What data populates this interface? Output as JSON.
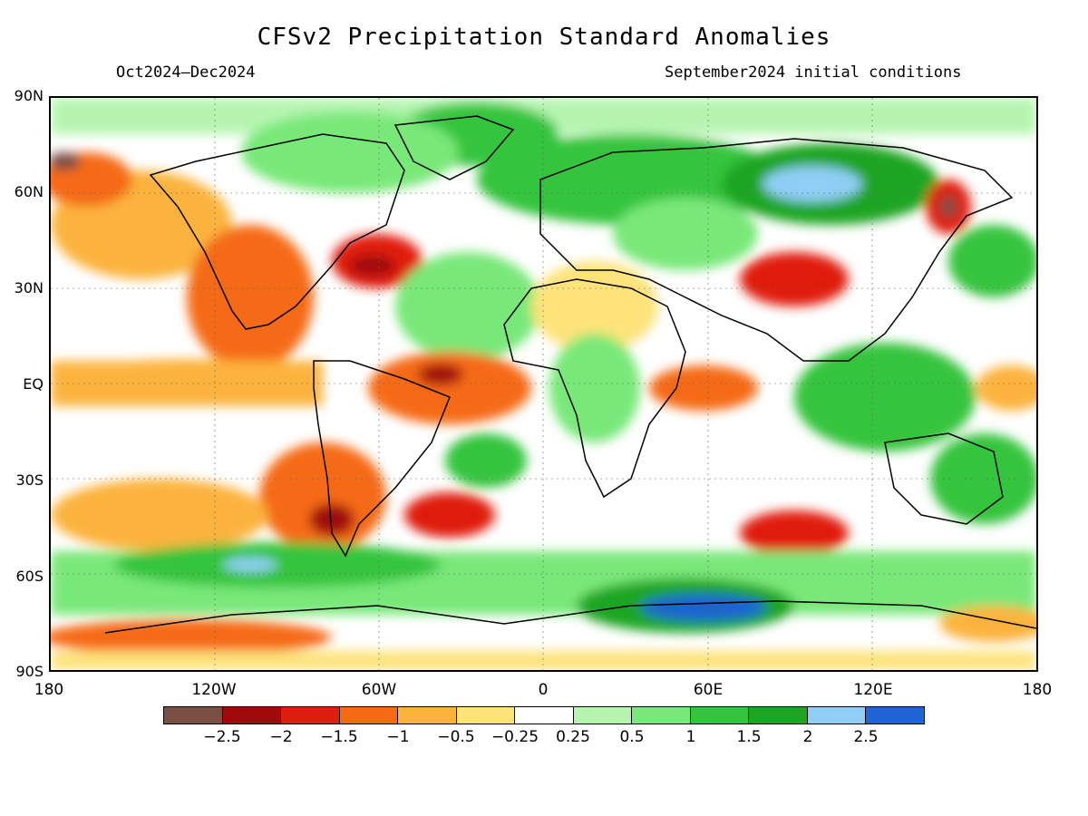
{
  "header": {
    "title": "CFSv2 Precipitation Standard Anomalies",
    "period": "Oct2024–Dec2024",
    "initial_conditions": "September2024 initial conditions"
  },
  "map": {
    "projection": "equirectangular",
    "lat_labels": [
      "90N",
      "60N",
      "30N",
      "EQ",
      "30S",
      "60S",
      "90S"
    ],
    "lon_labels": [
      "180",
      "120W",
      "60W",
      "0",
      "60E",
      "120E",
      "180"
    ],
    "grid": "dotted at 30-degree intervals"
  },
  "legend": {
    "labels": [
      "−2.5",
      "−2",
      "−1.5",
      "−1",
      "−0.5",
      "−0.25",
      "0.25",
      "0.5",
      "1",
      "1.5",
      "2",
      "2.5"
    ],
    "colors": [
      "#7a5044",
      "#a00a0a",
      "#e01e0e",
      "#f56a14",
      "#fcb33c",
      "#fde37a",
      "#ffffff",
      "#b5f5b0",
      "#78e878",
      "#35c43c",
      "#1ea521",
      "#8fcff5",
      "#1e64d2"
    ]
  }
}
